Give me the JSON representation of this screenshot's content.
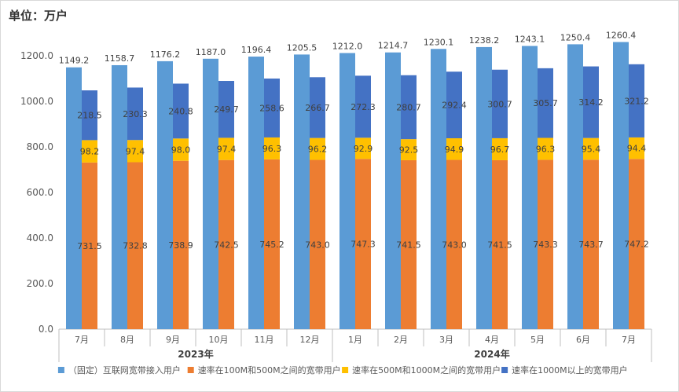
{
  "unit_label": "单位：万户",
  "chart_data": {
    "type": "bar",
    "ylim": [
      0,
      1300
    ],
    "yticks": [
      "0.0",
      "200.0",
      "400.0",
      "600.0",
      "800.0",
      "1000.0",
      "1200.0"
    ],
    "categories": [
      "7月",
      "8月",
      "9月",
      "10月",
      "11月",
      "12月",
      "1月",
      "2月",
      "3月",
      "4月",
      "5月",
      "6月",
      "7月"
    ],
    "year_groups": [
      {
        "label": "2023年",
        "start": 0,
        "end": 5
      },
      {
        "label": "2024年",
        "start": 6,
        "end": 12
      }
    ],
    "legend_position": "bottom",
    "grid": false,
    "total_series": {
      "name": "（固定）互联网宽带接入用户",
      "color": "#5B9BD5",
      "values": [
        1149.2,
        1158.7,
        1176.2,
        1187.0,
        1196.4,
        1205.5,
        1212.0,
        1214.7,
        1230.1,
        1238.2,
        1243.1,
        1250.4,
        1260.4
      ]
    },
    "stack_series": [
      {
        "name": "速率在100M和500M之间的宽带用户",
        "color": "#ED7D31",
        "values": [
          731.5,
          732.8,
          738.9,
          742.5,
          745.2,
          743.0,
          747.3,
          741.5,
          743.0,
          741.5,
          743.3,
          743.7,
          747.2
        ]
      },
      {
        "name": "速率在500M和1000M之间的宽带用户",
        "color": "#FFC000",
        "values": [
          98.2,
          97.4,
          98.0,
          97.4,
          96.3,
          96.2,
          92.9,
          92.5,
          94.9,
          96.7,
          96.3,
          95.4,
          94.4
        ]
      },
      {
        "name": "速率在1000M以上的宽带用户",
        "color": "#4472C4",
        "values": [
          218.5,
          230.3,
          240.8,
          249.7,
          258.6,
          266.7,
          272.3,
          280.7,
          292.4,
          300.7,
          305.7,
          314.2,
          321.2
        ]
      }
    ]
  }
}
